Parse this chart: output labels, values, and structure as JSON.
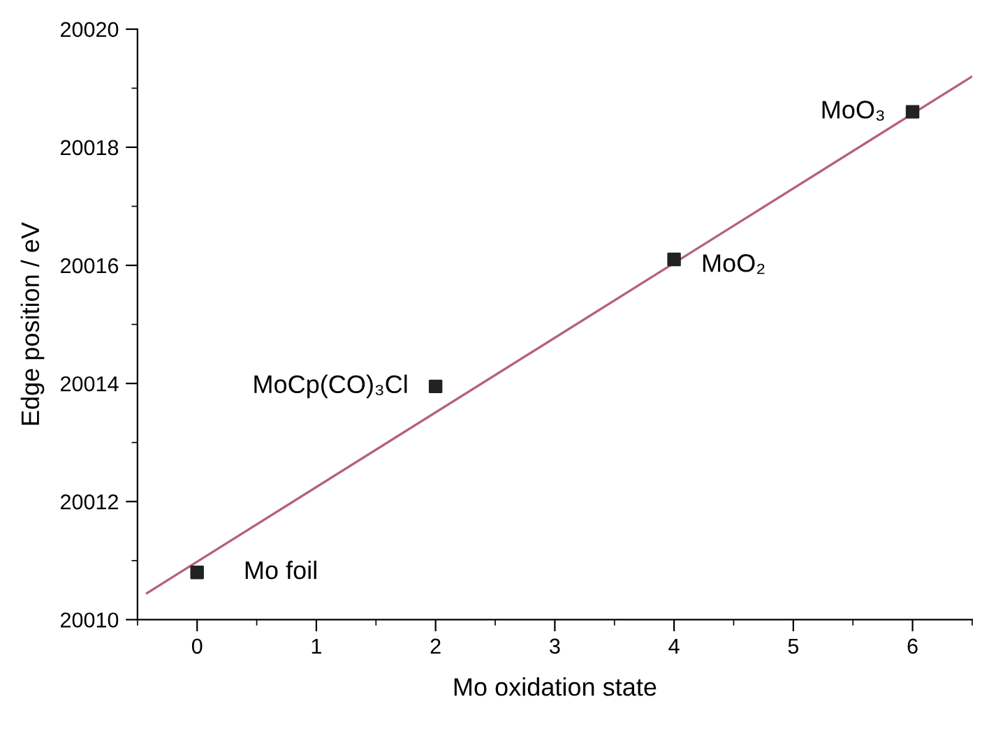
{
  "chart_data": {
    "type": "scatter",
    "xlabel": "Mo oxidation state",
    "ylabel": "Edge position / eV",
    "x": [
      0,
      2,
      4,
      6
    ],
    "xlim": [
      -0.5,
      6.5
    ],
    "xticks": [
      0,
      1,
      2,
      3,
      4,
      5,
      6
    ],
    "ylim": [
      20010,
      20020
    ],
    "yticks": [
      20010,
      20012,
      20014,
      20016,
      20018,
      20020
    ],
    "grid": false,
    "legend": false,
    "marker": "square",
    "series": [
      {
        "color": "#222222",
        "values": [
          20010.8,
          20013.95,
          20016.1,
          20018.6
        ]
      },
      {
        "type": "line",
        "color": "#b5607e",
        "x": [
          -0.42,
          6.5
        ],
        "values": [
          20010.45,
          20019.2
        ],
        "marker": "none",
        "line_style": "solid"
      }
    ],
    "annotations": [
      {
        "text": "Mo foil",
        "x": 0,
        "y": 20010.8
      },
      {
        "text": "MoCp(CO)₃Cl",
        "x": 2,
        "y": 20013.95
      },
      {
        "text": "MoO₂",
        "x": 4,
        "y": 20016.1
      },
      {
        "text": "MoO₃",
        "x": 6,
        "y": 20018.6
      }
    ]
  }
}
